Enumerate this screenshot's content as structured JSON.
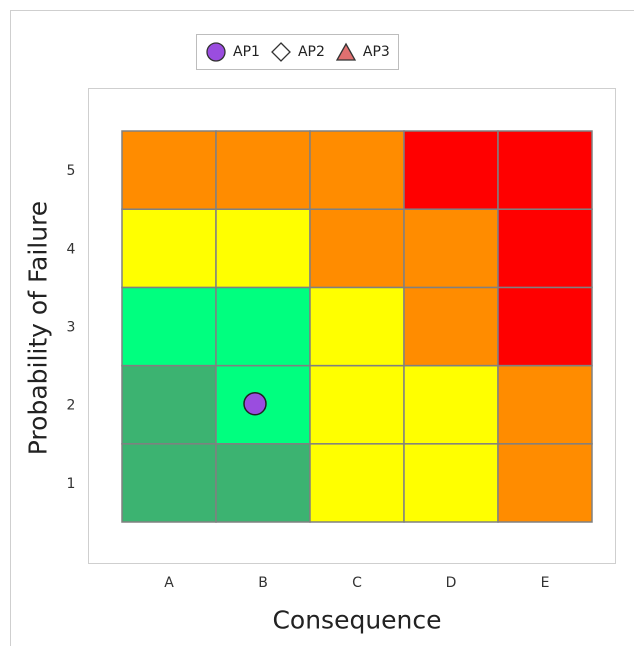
{
  "chart_data": {
    "type": "heatmap",
    "xlabel": "Consequence",
    "ylabel": "Probability of Failure",
    "x_categories": [
      "A",
      "B",
      "C",
      "D",
      "E"
    ],
    "y_categories": [
      "1",
      "2",
      "3",
      "4",
      "5"
    ],
    "cell_colors_by_row": [
      [
        "#3cb371",
        "#3cb371",
        "#ffff00",
        "#ffff00",
        "#ff8c00"
      ],
      [
        "#3cb371",
        "#00ff7f",
        "#ffff00",
        "#ffff00",
        "#ff8c00"
      ],
      [
        "#00ff7f",
        "#00ff7f",
        "#ffff00",
        "#ff8c00",
        "#ff0000"
      ],
      [
        "#ffff00",
        "#ffff00",
        "#ff8c00",
        "#ff8c00",
        "#ff0000"
      ],
      [
        "#ff8c00",
        "#ff8c00",
        "#ff8c00",
        "#ff0000",
        "#ff0000"
      ]
    ],
    "legend": [
      {
        "name": "AP1",
        "marker": "circle",
        "color": "#9a4ddf"
      },
      {
        "name": "AP2",
        "marker": "diamond",
        "color": "#ffffff"
      },
      {
        "name": "AP3",
        "marker": "triangle",
        "color": "#e07070"
      }
    ],
    "points": [
      {
        "series": "AP1",
        "x": "B",
        "y": 2
      }
    ],
    "grid_line_color": "#808080",
    "legend_position": "top-center"
  }
}
